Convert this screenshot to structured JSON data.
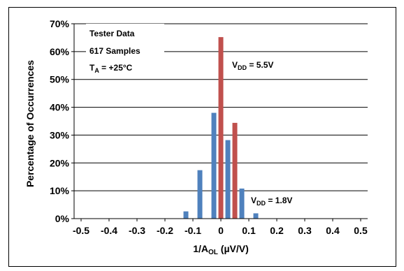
{
  "chart_data": {
    "type": "bar",
    "xlabel_main": "1/A",
    "xlabel_sub": "OL",
    "xlabel_unit": " (µV/V)",
    "ylabel": "Percentage of Occurrences",
    "xlim": [
      -0.525,
      0.525
    ],
    "ylim": [
      0,
      70
    ],
    "x_ticks": [
      -0.5,
      -0.4,
      -0.3,
      -0.2,
      -0.1,
      0,
      0.1,
      0.2,
      0.3,
      0.4,
      0.5
    ],
    "x_tick_labels": [
      "-0.5",
      "-0.4",
      "-0.3",
      "-0.2",
      "-0.1",
      "0",
      "0.1",
      "0.2",
      "0.3",
      "0.4",
      "0.5"
    ],
    "y_ticks": [
      0,
      10,
      20,
      30,
      40,
      50,
      60,
      70
    ],
    "y_tick_labels": [
      "0%",
      "10%",
      "20%",
      "30%",
      "40%",
      "50%",
      "60%",
      "70%"
    ],
    "grid": "horizontal",
    "series": [
      {
        "name": "VDD = 1.8V",
        "color": "#4f81bd",
        "points": [
          {
            "x": -0.125,
            "y": 2.6
          },
          {
            "x": -0.075,
            "y": 17.4
          },
          {
            "x": -0.025,
            "y": 38.0
          },
          {
            "x": 0.025,
            "y": 28.2
          },
          {
            "x": 0.075,
            "y": 10.8
          },
          {
            "x": 0.125,
            "y": 1.9
          }
        ]
      },
      {
        "name": "VDD = 5.5V",
        "color": "#c0504d",
        "points": [
          {
            "x": 0.0,
            "y": 65.2
          },
          {
            "x": 0.05,
            "y": 34.4
          }
        ]
      }
    ],
    "annotations": {
      "tester": "Tester Data",
      "samples": "617 Samples",
      "temp_main": "T",
      "temp_sub": "A",
      "temp_rest": " = +25°C",
      "v55_main": "V",
      "v55_sub": "DD",
      "v55_rest": " = 5.5V",
      "v18_main": "V",
      "v18_sub": "DD",
      "v18_rest": " = 1.8V"
    }
  }
}
